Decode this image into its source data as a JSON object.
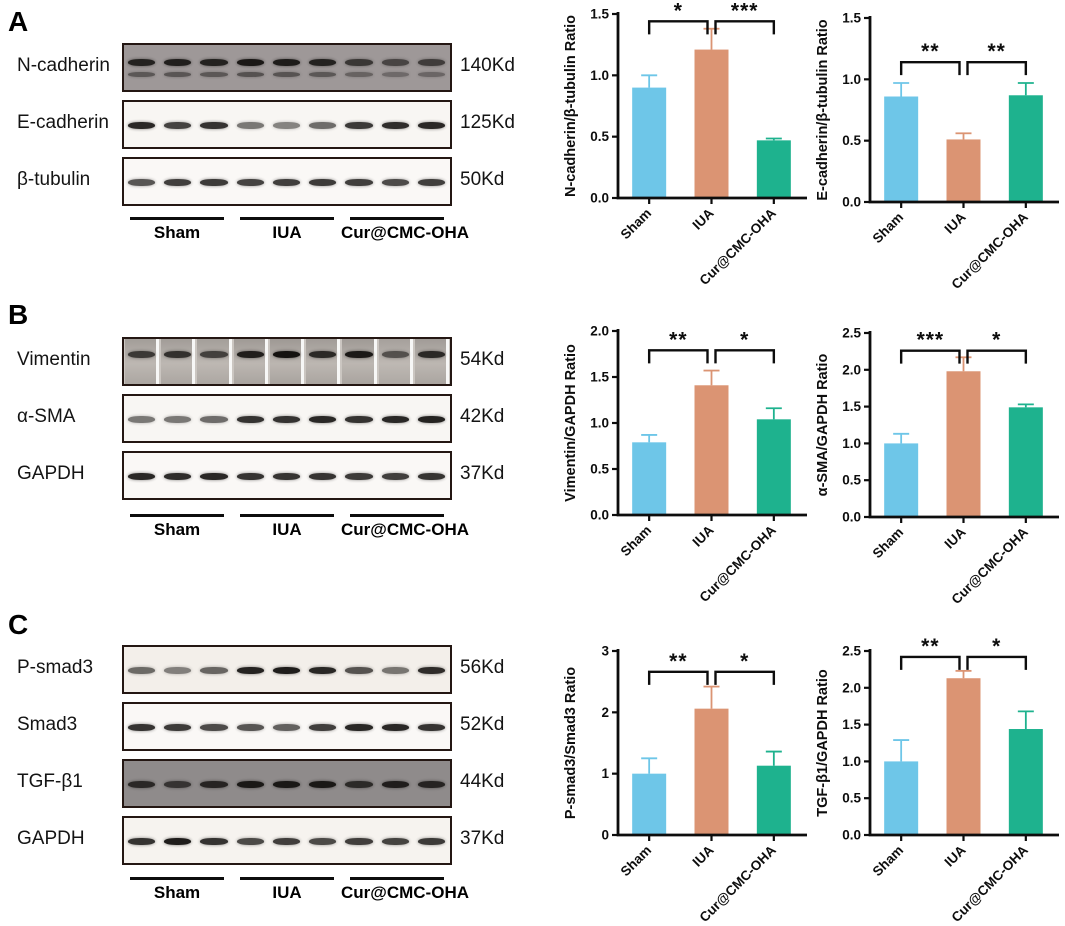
{
  "figure": {
    "groups": [
      "Sham",
      "IUA",
      "Cur@CMC-OHA"
    ],
    "group_colors": [
      "#6EC6E8",
      "#DB9473",
      "#1EB28E"
    ],
    "panels": [
      {
        "label": "A",
        "blots": [
          {
            "protein": "N-cadherin",
            "weight": "140Kd",
            "style": "double",
            "bg": "#9E9898",
            "lanes": [
              0.88,
              0.9,
              0.88,
              0.95,
              0.92,
              0.88,
              0.72,
              0.62,
              0.68
            ]
          },
          {
            "protein": "E-cadherin",
            "weight": "125Kd",
            "style": "single",
            "bg": "#F8F6F3",
            "lanes": [
              0.9,
              0.78,
              0.85,
              0.55,
              0.5,
              0.6,
              0.82,
              0.88,
              0.9
            ]
          },
          {
            "protein": "β-tubulin",
            "weight": "50Kd",
            "style": "single",
            "bg": "#FAF8F6",
            "lanes": [
              0.7,
              0.8,
              0.82,
              0.78,
              0.8,
              0.82,
              0.8,
              0.75,
              0.8
            ]
          }
        ]
      },
      {
        "label": "B",
        "blots": [
          {
            "protein": "Vimentin",
            "weight": "54Kd",
            "style": "smear",
            "bg": "#CBC6C1",
            "lanes": [
              0.75,
              0.8,
              0.7,
              0.92,
              1.0,
              0.85,
              0.95,
              0.6,
              0.85
            ]
          },
          {
            "protein": "α-SMA",
            "weight": "42Kd",
            "style": "single",
            "bg": "#F8F6F3",
            "lanes": [
              0.55,
              0.55,
              0.6,
              0.85,
              0.85,
              0.9,
              0.85,
              0.9,
              0.92
            ]
          },
          {
            "protein": "GAPDH",
            "weight": "37Kd",
            "style": "single",
            "bg": "#FAF8F6",
            "lanes": [
              0.9,
              0.88,
              0.9,
              0.85,
              0.85,
              0.85,
              0.82,
              0.8,
              0.85
            ]
          }
        ]
      },
      {
        "label": "C",
        "blots": [
          {
            "protein": "P-smad3",
            "weight": "56Kd",
            "style": "single",
            "bg": "#F3EFEA",
            "lanes": [
              0.6,
              0.5,
              0.62,
              0.92,
              0.95,
              0.9,
              0.7,
              0.55,
              0.88
            ]
          },
          {
            "protein": "Smad3",
            "weight": "52Kd",
            "style": "single",
            "bg": "#FAF8F6",
            "lanes": [
              0.85,
              0.82,
              0.75,
              0.7,
              0.65,
              0.8,
              0.9,
              0.9,
              0.85
            ]
          },
          {
            "protein": "TGF-β1",
            "weight": "44Kd",
            "style": "single",
            "bg": "#8F8B8B",
            "lanes": [
              0.82,
              0.72,
              0.85,
              0.95,
              0.95,
              0.95,
              0.8,
              0.9,
              0.85
            ]
          },
          {
            "protein": "GAPDH",
            "weight": "37Kd",
            "style": "single",
            "bg": "#F6F3EF",
            "lanes": [
              0.85,
              0.95,
              0.85,
              0.75,
              0.8,
              0.75,
              0.8,
              0.78,
              0.82
            ]
          }
        ]
      }
    ]
  },
  "chart_data": [
    {
      "type": "bar",
      "title": "",
      "xlabel": "",
      "ylabel": "N-cadherin/β-tubulin Ratio",
      "categories": [
        "Sham",
        "IUA",
        "Cur@CMC-OHA"
      ],
      "values": [
        0.9,
        1.21,
        0.47
      ],
      "errors": [
        0.1,
        0.17,
        0.015
      ],
      "bar_colors": [
        "#6EC6E8",
        "#DB9473",
        "#1EB28E"
      ],
      "ylim": [
        0,
        1.5
      ],
      "yticks": [
        0,
        0.5,
        1.0,
        1.5
      ],
      "ytick_labels": [
        "0.0",
        "0.5",
        "1.0",
        "1.5"
      ],
      "grid": false,
      "legend": "none",
      "significance": [
        {
          "between": [
            "Sham",
            "IUA"
          ],
          "label": "*"
        },
        {
          "between": [
            "IUA",
            "Cur@CMC-OHA"
          ],
          "label": "***"
        }
      ],
      "bracket_y": 1.44
    },
    {
      "type": "bar",
      "title": "",
      "xlabel": "",
      "ylabel": "E-cadherin/β-tubulin Ratio",
      "categories": [
        "Sham",
        "IUA",
        "Cur@CMC-OHA"
      ],
      "values": [
        0.86,
        0.51,
        0.87
      ],
      "errors": [
        0.11,
        0.05,
        0.1
      ],
      "bar_colors": [
        "#6EC6E8",
        "#DB9473",
        "#1EB28E"
      ],
      "ylim": [
        0,
        1.5
      ],
      "yticks": [
        0,
        0.5,
        1.0,
        1.5
      ],
      "ytick_labels": [
        "0.0",
        "0.5",
        "1.0",
        "1.5"
      ],
      "grid": false,
      "legend": "none",
      "significance": [
        {
          "between": [
            "Sham",
            "IUA"
          ],
          "label": "**"
        },
        {
          "between": [
            "IUA",
            "Cur@CMC-OHA"
          ],
          "label": "**"
        }
      ],
      "bracket_y": 1.14
    },
    {
      "type": "bar",
      "title": "",
      "xlabel": "",
      "ylabel": "Vimentin/GAPDH Ratio",
      "categories": [
        "Sham",
        "IUA",
        "Cur@CMC-OHA"
      ],
      "values": [
        0.79,
        1.41,
        1.04
      ],
      "errors": [
        0.08,
        0.16,
        0.12
      ],
      "bar_colors": [
        "#6EC6E8",
        "#DB9473",
        "#1EB28E"
      ],
      "ylim": [
        0,
        2.0
      ],
      "yticks": [
        0,
        0.5,
        1.0,
        1.5,
        2.0
      ],
      "ytick_labels": [
        "0.0",
        "0.5",
        "1.0",
        "1.5",
        "2.0"
      ],
      "grid": false,
      "legend": "none",
      "significance": [
        {
          "between": [
            "Sham",
            "IUA"
          ],
          "label": "**"
        },
        {
          "between": [
            "IUA",
            "Cur@CMC-OHA"
          ],
          "label": "*"
        }
      ],
      "bracket_y": 1.79
    },
    {
      "type": "bar",
      "title": "",
      "xlabel": "",
      "ylabel": "α-SMA/GAPDH Ratio",
      "categories": [
        "Sham",
        "IUA",
        "Cur@CMC-OHA"
      ],
      "values": [
        1.0,
        1.98,
        1.49
      ],
      "errors": [
        0.13,
        0.19,
        0.04
      ],
      "bar_colors": [
        "#6EC6E8",
        "#DB9473",
        "#1EB28E"
      ],
      "ylim": [
        0,
        2.5
      ],
      "yticks": [
        0,
        0.5,
        1.0,
        1.5,
        2.0,
        2.5
      ],
      "ytick_labels": [
        "0.0",
        "0.5",
        "1.0",
        "1.5",
        "2.0",
        "2.5"
      ],
      "grid": false,
      "legend": "none",
      "significance": [
        {
          "between": [
            "Sham",
            "IUA"
          ],
          "label": "***"
        },
        {
          "between": [
            "IUA",
            "Cur@CMC-OHA"
          ],
          "label": "*"
        }
      ],
      "bracket_y": 2.26
    },
    {
      "type": "bar",
      "title": "",
      "xlabel": "",
      "ylabel": "P-smad3/Smad3 Ratio",
      "categories": [
        "Sham",
        "IUA",
        "Cur@CMC-OHA"
      ],
      "values": [
        1.0,
        2.06,
        1.13
      ],
      "errors": [
        0.25,
        0.36,
        0.23
      ],
      "bar_colors": [
        "#6EC6E8",
        "#DB9473",
        "#1EB28E"
      ],
      "ylim": [
        0,
        3
      ],
      "yticks": [
        0,
        1,
        2,
        3
      ],
      "ytick_labels": [
        "0",
        "1",
        "2",
        "3"
      ],
      "grid": false,
      "legend": "none",
      "significance": [
        {
          "between": [
            "Sham",
            "IUA"
          ],
          "label": "**"
        },
        {
          "between": [
            "IUA",
            "Cur@CMC-OHA"
          ],
          "label": "*"
        }
      ],
      "bracket_y": 2.66
    },
    {
      "type": "bar",
      "title": "",
      "xlabel": "",
      "ylabel": "TGF-β1/GAPDH Ratio",
      "categories": [
        "Sham",
        "IUA",
        "Cur@CMC-OHA"
      ],
      "values": [
        1.0,
        2.13,
        1.44
      ],
      "errors": [
        0.29,
        0.1,
        0.24
      ],
      "bar_colors": [
        "#6EC6E8",
        "#DB9473",
        "#1EB28E"
      ],
      "ylim": [
        0,
        2.5
      ],
      "yticks": [
        0,
        0.5,
        1.0,
        1.5,
        2.0,
        2.5
      ],
      "ytick_labels": [
        "0.0",
        "0.5",
        "1.0",
        "1.5",
        "2.0",
        "2.5"
      ],
      "grid": false,
      "legend": "none",
      "significance": [
        {
          "between": [
            "Sham",
            "IUA"
          ],
          "label": "**"
        },
        {
          "between": [
            "IUA",
            "Cur@CMC-OHA"
          ],
          "label": "*"
        }
      ],
      "bracket_y": 2.42
    }
  ]
}
